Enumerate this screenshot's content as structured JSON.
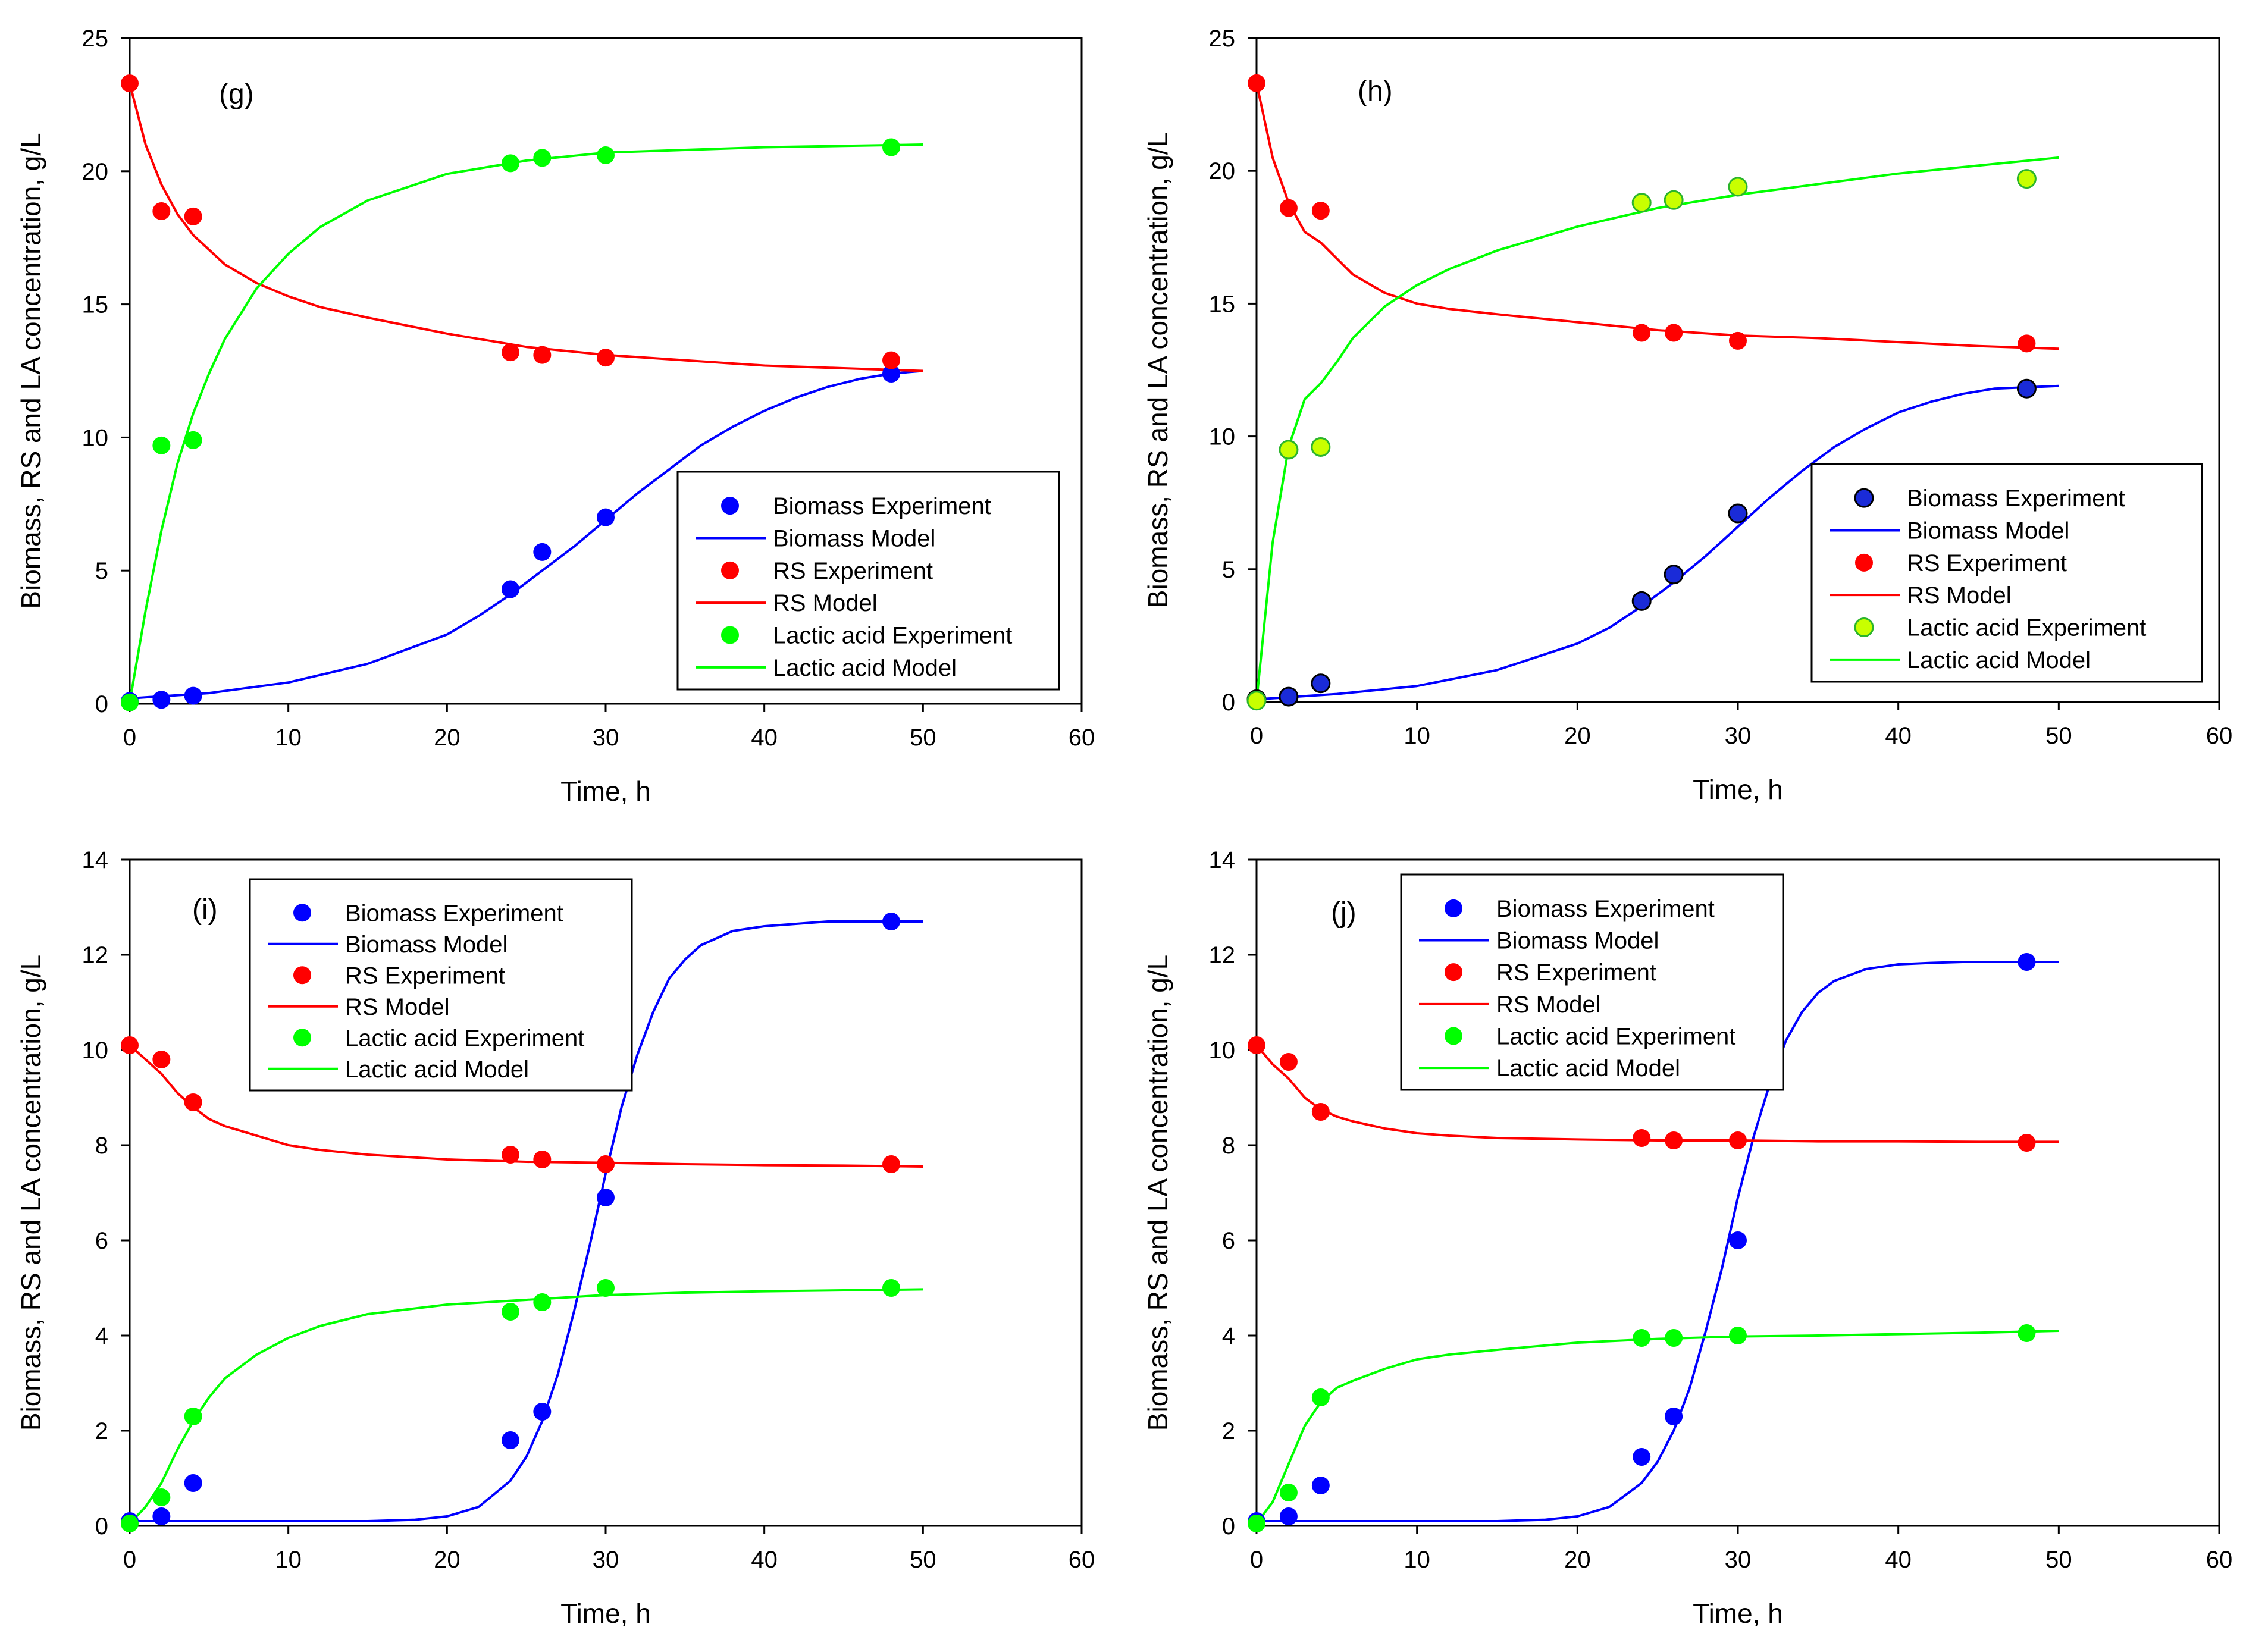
{
  "colors": {
    "biomass": "#0000ff",
    "rs": "#ff0000",
    "lactic": "#00ff00",
    "biomass_h_fill": "#1a2bd8",
    "lactic_h_fill": "#c8ff00",
    "axis": "#000000"
  },
  "chart_data": [
    {
      "type": "scatter",
      "panel": "(g)",
      "xlabel": "Time, h",
      "ylabel": "Biomass, RS and LA concentration, g/L",
      "xlim": [
        0,
        60
      ],
      "ylim": [
        0,
        25
      ],
      "xticks": [
        "0",
        "10",
        "20",
        "30",
        "40",
        "50",
        "60"
      ],
      "yticks": [
        "0",
        "5",
        "10",
        "15",
        "20",
        "25"
      ],
      "legend_position": "bottom-right",
      "legend": [
        "Biomass Experiment",
        "Biomass Model",
        "RS Experiment",
        "RS Model",
        "Lactic acid Experiment",
        "Lactic acid Model"
      ],
      "experiment_x": [
        0,
        2,
        4,
        24,
        26,
        30,
        48
      ],
      "series": [
        {
          "name": "Biomass Experiment",
          "values": [
            0.1,
            0.15,
            0.3,
            4.3,
            5.7,
            7.0,
            12.4
          ]
        },
        {
          "name": "RS Experiment",
          "values": [
            23.3,
            18.5,
            18.3,
            13.2,
            13.1,
            13.0,
            12.9
          ]
        },
        {
          "name": "Lactic acid Experiment",
          "values": [
            0.05,
            9.7,
            9.9,
            20.3,
            20.5,
            20.6,
            20.9
          ]
        }
      ],
      "models": [
        {
          "name": "Biomass Model",
          "x": [
            0,
            5,
            10,
            15,
            20,
            22,
            24,
            26,
            28,
            30,
            32,
            34,
            36,
            38,
            40,
            42,
            44,
            46,
            48,
            50
          ],
          "values": [
            0.2,
            0.4,
            0.8,
            1.5,
            2.6,
            3.3,
            4.1,
            5.0,
            5.9,
            6.9,
            7.9,
            8.8,
            9.7,
            10.4,
            11.0,
            11.5,
            11.9,
            12.2,
            12.4,
            12.5
          ]
        },
        {
          "name": "RS Model",
          "x": [
            0,
            1,
            2,
            3,
            4,
            6,
            8,
            10,
            12,
            15,
            20,
            25,
            30,
            35,
            40,
            45,
            50
          ],
          "values": [
            23.3,
            21.0,
            19.5,
            18.4,
            17.6,
            16.5,
            15.8,
            15.3,
            14.9,
            14.5,
            13.9,
            13.4,
            13.1,
            12.9,
            12.7,
            12.6,
            12.5
          ]
        },
        {
          "name": "Lactic acid Model",
          "x": [
            0,
            1,
            2,
            3,
            4,
            5,
            6,
            8,
            10,
            12,
            15,
            20,
            25,
            30,
            35,
            40,
            45,
            50
          ],
          "values": [
            0.05,
            3.5,
            6.5,
            9.0,
            10.9,
            12.4,
            13.7,
            15.6,
            16.9,
            17.9,
            18.9,
            19.9,
            20.4,
            20.7,
            20.8,
            20.9,
            20.95,
            21.0
          ]
        }
      ]
    },
    {
      "type": "scatter",
      "panel": "(h)",
      "xlabel": "Time, h",
      "ylabel": "Biomass, RS and LA concentration, g/L",
      "xlim": [
        0,
        60
      ],
      "ylim": [
        0,
        25
      ],
      "xticks": [
        "0",
        "10",
        "20",
        "30",
        "40",
        "50",
        "60"
      ],
      "yticks": [
        "0",
        "5",
        "10",
        "15",
        "20",
        "25"
      ],
      "legend_position": "bottom-right",
      "legend": [
        "Biomass Experiment",
        "Biomass Model",
        "RS Experiment",
        "RS Model",
        "Lactic acid Experiment",
        "Lactic acid Model"
      ],
      "experiment_x": [
        0,
        2,
        4,
        24,
        26,
        30,
        48
      ],
      "series": [
        {
          "name": "Biomass Experiment",
          "values": [
            0.1,
            0.2,
            0.7,
            3.8,
            4.8,
            7.1,
            11.8
          ]
        },
        {
          "name": "RS Experiment",
          "values": [
            23.3,
            18.6,
            18.5,
            13.9,
            13.9,
            13.6,
            13.5
          ]
        },
        {
          "name": "Lactic acid Experiment",
          "values": [
            0.05,
            9.5,
            9.6,
            18.8,
            18.9,
            19.4,
            19.7
          ]
        }
      ],
      "models": [
        {
          "name": "Biomass Model",
          "x": [
            0,
            5,
            10,
            15,
            20,
            22,
            24,
            26,
            28,
            30,
            32,
            34,
            36,
            38,
            40,
            42,
            44,
            46,
            48,
            50
          ],
          "values": [
            0.1,
            0.3,
            0.6,
            1.2,
            2.2,
            2.8,
            3.6,
            4.5,
            5.5,
            6.6,
            7.7,
            8.7,
            9.6,
            10.3,
            10.9,
            11.3,
            11.6,
            11.8,
            11.85,
            11.9
          ]
        },
        {
          "name": "RS Model",
          "x": [
            0,
            1,
            2,
            3,
            4,
            5,
            6,
            8,
            10,
            12,
            15,
            20,
            25,
            30,
            35,
            40,
            45,
            50
          ],
          "values": [
            23.3,
            20.5,
            18.8,
            17.7,
            17.3,
            16.7,
            16.1,
            15.4,
            15.0,
            14.8,
            14.6,
            14.3,
            14.0,
            13.8,
            13.7,
            13.55,
            13.4,
            13.3
          ]
        },
        {
          "name": "Lactic acid Model",
          "x": [
            0,
            1,
            2,
            3,
            4,
            5,
            6,
            8,
            10,
            12,
            15,
            20,
            25,
            30,
            35,
            40,
            45,
            50
          ],
          "values": [
            0.05,
            6.0,
            9.6,
            11.4,
            12.0,
            12.8,
            13.7,
            14.9,
            15.7,
            16.3,
            17.0,
            17.9,
            18.6,
            19.1,
            19.5,
            19.9,
            20.2,
            20.5
          ]
        }
      ]
    },
    {
      "type": "scatter",
      "panel": "(i)",
      "xlabel": "Time, h",
      "ylabel": "Biomass, RS and LA concentration, g/L",
      "xlim": [
        0,
        60
      ],
      "ylim": [
        0,
        14
      ],
      "xticks": [
        "0",
        "10",
        "20",
        "30",
        "40",
        "50",
        "60"
      ],
      "yticks": [
        "0",
        "2",
        "4",
        "6",
        "8",
        "10",
        "12",
        "14"
      ],
      "legend_position": "top-left",
      "legend": [
        "Biomass Experiment",
        "Biomass Model",
        "RS Experiment",
        "RS Model",
        "Lactic acid Experiment",
        "Lactic acid Model"
      ],
      "experiment_x": [
        0,
        2,
        4,
        24,
        26,
        30,
        48
      ],
      "series": [
        {
          "name": "Biomass Experiment",
          "values": [
            0.1,
            0.2,
            0.9,
            1.8,
            2.4,
            6.9,
            12.7
          ]
        },
        {
          "name": "RS Experiment",
          "values": [
            10.1,
            9.8,
            8.9,
            7.8,
            7.7,
            7.6,
            7.6
          ]
        },
        {
          "name": "Lactic acid Experiment",
          "values": [
            0.05,
            0.6,
            2.3,
            4.5,
            4.7,
            5.0,
            5.0
          ]
        }
      ],
      "models": [
        {
          "name": "Biomass Model",
          "x": [
            0,
            10,
            15,
            18,
            20,
            22,
            24,
            25,
            26,
            27,
            28,
            29,
            30,
            31,
            32,
            33,
            34,
            35,
            36,
            38,
            40,
            42,
            44,
            46,
            48,
            50
          ],
          "values": [
            0.1,
            0.1,
            0.1,
            0.13,
            0.2,
            0.4,
            0.95,
            1.45,
            2.2,
            3.2,
            4.5,
            5.9,
            7.4,
            8.8,
            9.9,
            10.8,
            11.5,
            11.9,
            12.2,
            12.5,
            12.6,
            12.65,
            12.7,
            12.7,
            12.7,
            12.7
          ]
        },
        {
          "name": "RS Model",
          "x": [
            0,
            1,
            2,
            3,
            4,
            5,
            6,
            8,
            10,
            12,
            15,
            20,
            25,
            30,
            35,
            40,
            45,
            50
          ],
          "values": [
            10.1,
            9.8,
            9.5,
            9.1,
            8.8,
            8.55,
            8.4,
            8.2,
            8.0,
            7.9,
            7.8,
            7.7,
            7.65,
            7.63,
            7.6,
            7.58,
            7.57,
            7.55
          ]
        },
        {
          "name": "Lactic acid Model",
          "x": [
            0,
            1,
            2,
            3,
            4,
            5,
            6,
            8,
            10,
            12,
            15,
            20,
            25,
            30,
            35,
            40,
            45,
            50
          ],
          "values": [
            0.05,
            0.4,
            0.9,
            1.6,
            2.2,
            2.7,
            3.1,
            3.6,
            3.95,
            4.2,
            4.45,
            4.65,
            4.75,
            4.85,
            4.9,
            4.93,
            4.95,
            4.97
          ]
        }
      ]
    },
    {
      "type": "scatter",
      "panel": "(j)",
      "xlabel": "Time, h",
      "ylabel": "Biomass, RS and LA concentration, g/L",
      "xlim": [
        0,
        60
      ],
      "ylim": [
        0,
        14
      ],
      "xticks": [
        "0",
        "10",
        "20",
        "30",
        "40",
        "50",
        "60"
      ],
      "yticks": [
        "0",
        "2",
        "4",
        "6",
        "8",
        "10",
        "12",
        "14"
      ],
      "legend_position": "top-left",
      "legend": [
        "Biomass Experiment",
        "Biomass Model",
        "RS Experiment",
        "RS Model",
        "Lactic acid Experiment",
        "Lactic acid Model"
      ],
      "experiment_x": [
        0,
        2,
        4,
        24,
        26,
        30,
        48
      ],
      "series": [
        {
          "name": "Biomass Experiment",
          "values": [
            0.1,
            0.2,
            0.85,
            1.45,
            2.3,
            6.0,
            11.85
          ]
        },
        {
          "name": "RS Experiment",
          "values": [
            10.1,
            9.75,
            8.7,
            8.15,
            8.1,
            8.1,
            8.05
          ]
        },
        {
          "name": "Lactic acid Experiment",
          "values": [
            0.05,
            0.7,
            2.7,
            3.95,
            3.95,
            4.0,
            4.05
          ]
        }
      ],
      "models": [
        {
          "name": "Biomass Model",
          "x": [
            0,
            10,
            15,
            18,
            20,
            22,
            24,
            25,
            26,
            27,
            28,
            29,
            30,
            31,
            32,
            33,
            34,
            35,
            36,
            38,
            40,
            42,
            44,
            46,
            48,
            50
          ],
          "values": [
            0.1,
            0.1,
            0.1,
            0.13,
            0.2,
            0.4,
            0.9,
            1.35,
            2.0,
            2.9,
            4.1,
            5.4,
            6.9,
            8.2,
            9.3,
            10.2,
            10.8,
            11.2,
            11.45,
            11.7,
            11.8,
            11.83,
            11.85,
            11.85,
            11.85,
            11.85
          ]
        },
        {
          "name": "RS Model",
          "x": [
            0,
            1,
            2,
            3,
            4,
            5,
            6,
            8,
            10,
            12,
            15,
            20,
            25,
            30,
            35,
            40,
            45,
            50
          ],
          "values": [
            10.1,
            9.7,
            9.4,
            9.0,
            8.75,
            8.6,
            8.5,
            8.35,
            8.25,
            8.2,
            8.15,
            8.12,
            8.1,
            8.1,
            8.08,
            8.08,
            8.07,
            8.07
          ]
        },
        {
          "name": "Lactic acid Model",
          "x": [
            0,
            1,
            2,
            3,
            4,
            5,
            6,
            8,
            10,
            12,
            15,
            20,
            25,
            30,
            35,
            40,
            45,
            50
          ],
          "values": [
            0.05,
            0.5,
            1.3,
            2.1,
            2.6,
            2.9,
            3.05,
            3.3,
            3.5,
            3.6,
            3.7,
            3.85,
            3.93,
            3.98,
            4.0,
            4.03,
            4.06,
            4.1
          ]
        }
      ]
    }
  ]
}
